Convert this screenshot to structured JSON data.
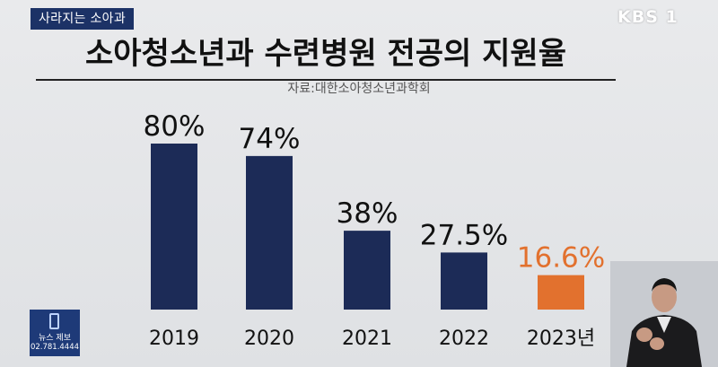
{
  "tag": "사라지는 소아과",
  "logo": "KBS 1",
  "title": "소아청소년과 수련병원 전공의 지원율",
  "source": "자료:대한소아청소년과학회",
  "news_box": {
    "label": "뉴스 제보",
    "phone": "02.781.4444"
  },
  "colors": {
    "bar": "#1c2b57",
    "highlight": "#e2712e",
    "label": "#111111"
  },
  "chart_data": {
    "type": "bar",
    "title": "소아청소년과 수련병원 전공의 지원율",
    "categories": [
      "2019",
      "2020",
      "2021",
      "2022",
      "2023년"
    ],
    "values": [
      80,
      74,
      38,
      27.5,
      16.6
    ],
    "value_labels": [
      "80%",
      "74%",
      "38%",
      "27.5%",
      "16.6%"
    ],
    "highlight_index": 4,
    "ylim": [
      0,
      100
    ],
    "grid": false,
    "legend": "none"
  }
}
